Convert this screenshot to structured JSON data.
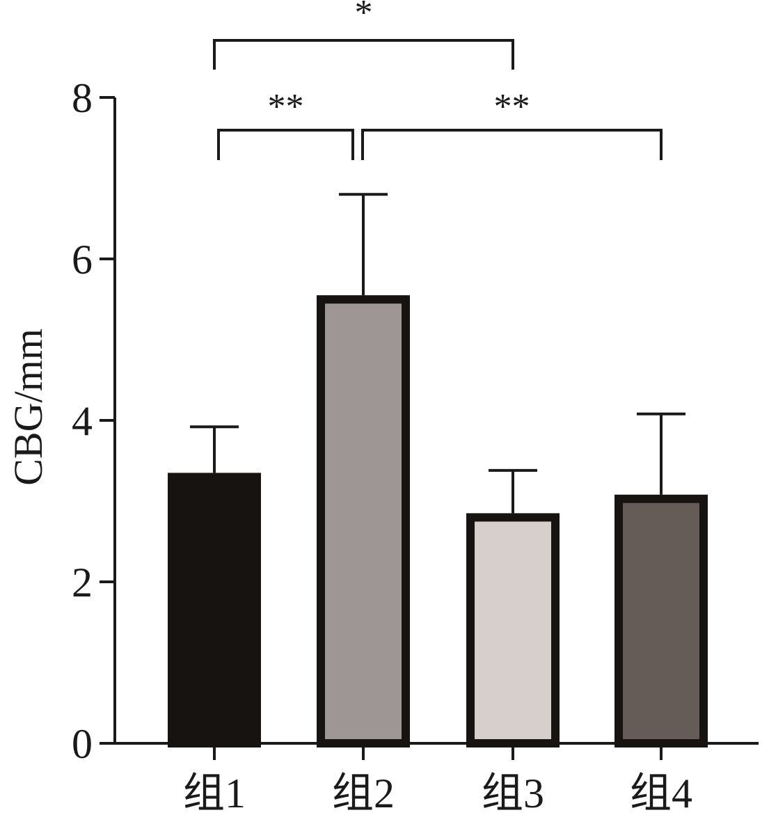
{
  "chart_data": {
    "type": "bar",
    "title": "",
    "xlabel": "",
    "ylabel": "CBG/mm",
    "ylim": [
      0,
      8
    ],
    "yticks": [
      0,
      2,
      4,
      6,
      8
    ],
    "categories": [
      "组1",
      "组2",
      "组3",
      "组4"
    ],
    "values": [
      3.35,
      5.55,
      2.85,
      3.08
    ],
    "errors": [
      0.57,
      1.25,
      0.53,
      1.0
    ],
    "colors": [
      "#171311",
      "#9e9595",
      "#d6cfcb",
      "#655c58"
    ],
    "significance": [
      {
        "from": 0,
        "to": 2,
        "label": "*"
      },
      {
        "from": 0,
        "to": 1,
        "label": "**"
      },
      {
        "from": 1,
        "to": 3,
        "label": "**"
      }
    ],
    "grid": false,
    "legend": "none"
  }
}
